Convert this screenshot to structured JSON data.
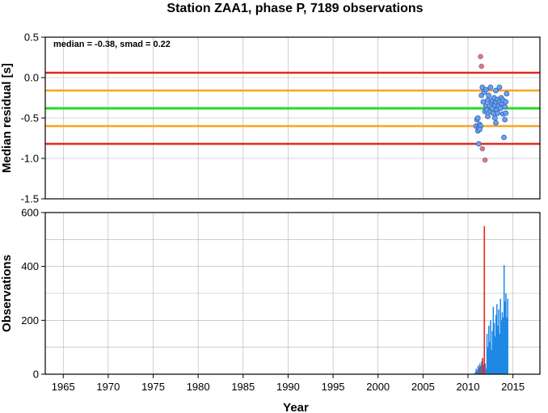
{
  "chart_data": [
    {
      "type": "scatter",
      "title": "Station ZAA1, phase P, 7189 observations",
      "xlabel": "",
      "ylabel": "Median residual [s]",
      "xlim": [
        1963,
        2018
      ],
      "ylim": [
        -1.5,
        0.5
      ],
      "xticks": [
        "1965",
        "1970",
        "1975",
        "1980",
        "1985",
        "1990",
        "1995",
        "2000",
        "2005",
        "2010",
        "2015"
      ],
      "yticks": [
        "0.5",
        "0.0",
        "-0.5",
        "-1.0",
        "-1.5"
      ],
      "annotation": "median = -0.38, smad = 0.22",
      "grid": true,
      "reference_lines": [
        {
          "value": 0.06,
          "color": "#e32a1c"
        },
        {
          "value": -0.16,
          "color": "#f5a623"
        },
        {
          "value": -0.38,
          "color": "#22dd22"
        },
        {
          "value": -0.6,
          "color": "#f5a623"
        },
        {
          "value": -0.82,
          "color": "#e32a1c"
        }
      ],
      "series": [
        {
          "color": "#6aa0f0",
          "x": [
            2010.9,
            2011.0,
            2011.1,
            2011.2,
            2011.3,
            2011.4,
            2011.2,
            2011.5,
            2011.6,
            2011.7,
            2011.8,
            2011.9,
            2012.0,
            2012.0,
            2012.1,
            2012.2,
            2012.2,
            2012.3,
            2012.4,
            2012.5,
            2012.5,
            2012.6,
            2012.7,
            2012.7,
            2012.8,
            2012.9,
            2013.0,
            2013.0,
            2013.1,
            2013.1,
            2013.2,
            2013.3,
            2013.3,
            2013.4,
            2013.5,
            2013.5,
            2013.6,
            2013.7,
            2013.8,
            2013.9,
            2013.9,
            2014.0,
            2014.1,
            2014.1,
            2014.2,
            2014.2,
            2014.3,
            2013.1,
            2011.1,
            2011.3
          ],
          "y": [
            -0.6,
            -0.52,
            -0.66,
            -0.62,
            -0.58,
            -0.6,
            -0.82,
            -0.22,
            -0.12,
            -0.3,
            -0.18,
            -0.42,
            -0.35,
            -0.15,
            -0.4,
            -0.28,
            -0.48,
            -0.22,
            -0.35,
            -0.42,
            -0.12,
            -0.3,
            -0.38,
            -0.28,
            -0.44,
            -0.25,
            -0.34,
            -0.5,
            -0.16,
            -0.3,
            -0.4,
            -0.27,
            -0.44,
            -0.35,
            -0.12,
            -0.3,
            -0.38,
            -0.25,
            -0.32,
            -0.45,
            -0.28,
            -0.74,
            -0.36,
            -0.52,
            -0.3,
            -0.44,
            -0.2,
            -0.56,
            -0.5,
            -0.64
          ]
        },
        {
          "color": "#f07070",
          "x": [
            2011.4,
            2011.5,
            2011.6,
            2011.9
          ],
          "y": [
            0.26,
            0.14,
            -0.88,
            -1.02
          ]
        }
      ]
    },
    {
      "type": "bar",
      "xlabel": "Year",
      "ylabel": "Observations",
      "xlim": [
        1963,
        2018
      ],
      "ylim": [
        0,
        600
      ],
      "xticks": [
        "1965",
        "1970",
        "1975",
        "1980",
        "1985",
        "1990",
        "1995",
        "2000",
        "2005",
        "2010",
        "2015"
      ],
      "yticks": [
        "600",
        "400",
        "200",
        "0"
      ],
      "grid": true,
      "series": [
        {
          "color": "#1e88e5",
          "x": [
            2010.8,
            2010.9,
            2011.0,
            2011.1,
            2011.2,
            2011.3,
            2011.4,
            2011.5,
            2011.6,
            2011.7,
            2011.8,
            2011.9,
            2012.0,
            2012.1,
            2012.2,
            2012.3,
            2012.4,
            2012.5,
            2012.6,
            2012.7,
            2012.8,
            2012.9,
            2013.0,
            2013.1,
            2013.2,
            2013.3,
            2013.4,
            2013.5,
            2013.6,
            2013.7,
            2013.8,
            2013.9,
            2014.0,
            2014.1,
            2014.2,
            2014.3,
            2014.4
          ],
          "values": [
            8,
            20,
            15,
            32,
            25,
            40,
            30,
            48,
            20,
            35,
            130,
            40,
            20,
            150,
            100,
            180,
            120,
            200,
            90,
            160,
            250,
            190,
            140,
            220,
            260,
            180,
            240,
            150,
            280,
            200,
            230,
            210,
            405,
            270,
            300,
            210,
            280
          ]
        },
        {
          "color": "#e32a1c",
          "x": [
            2011.3,
            2011.6,
            2011.8
          ],
          "values": [
            30,
            60,
            550
          ]
        }
      ]
    }
  ]
}
